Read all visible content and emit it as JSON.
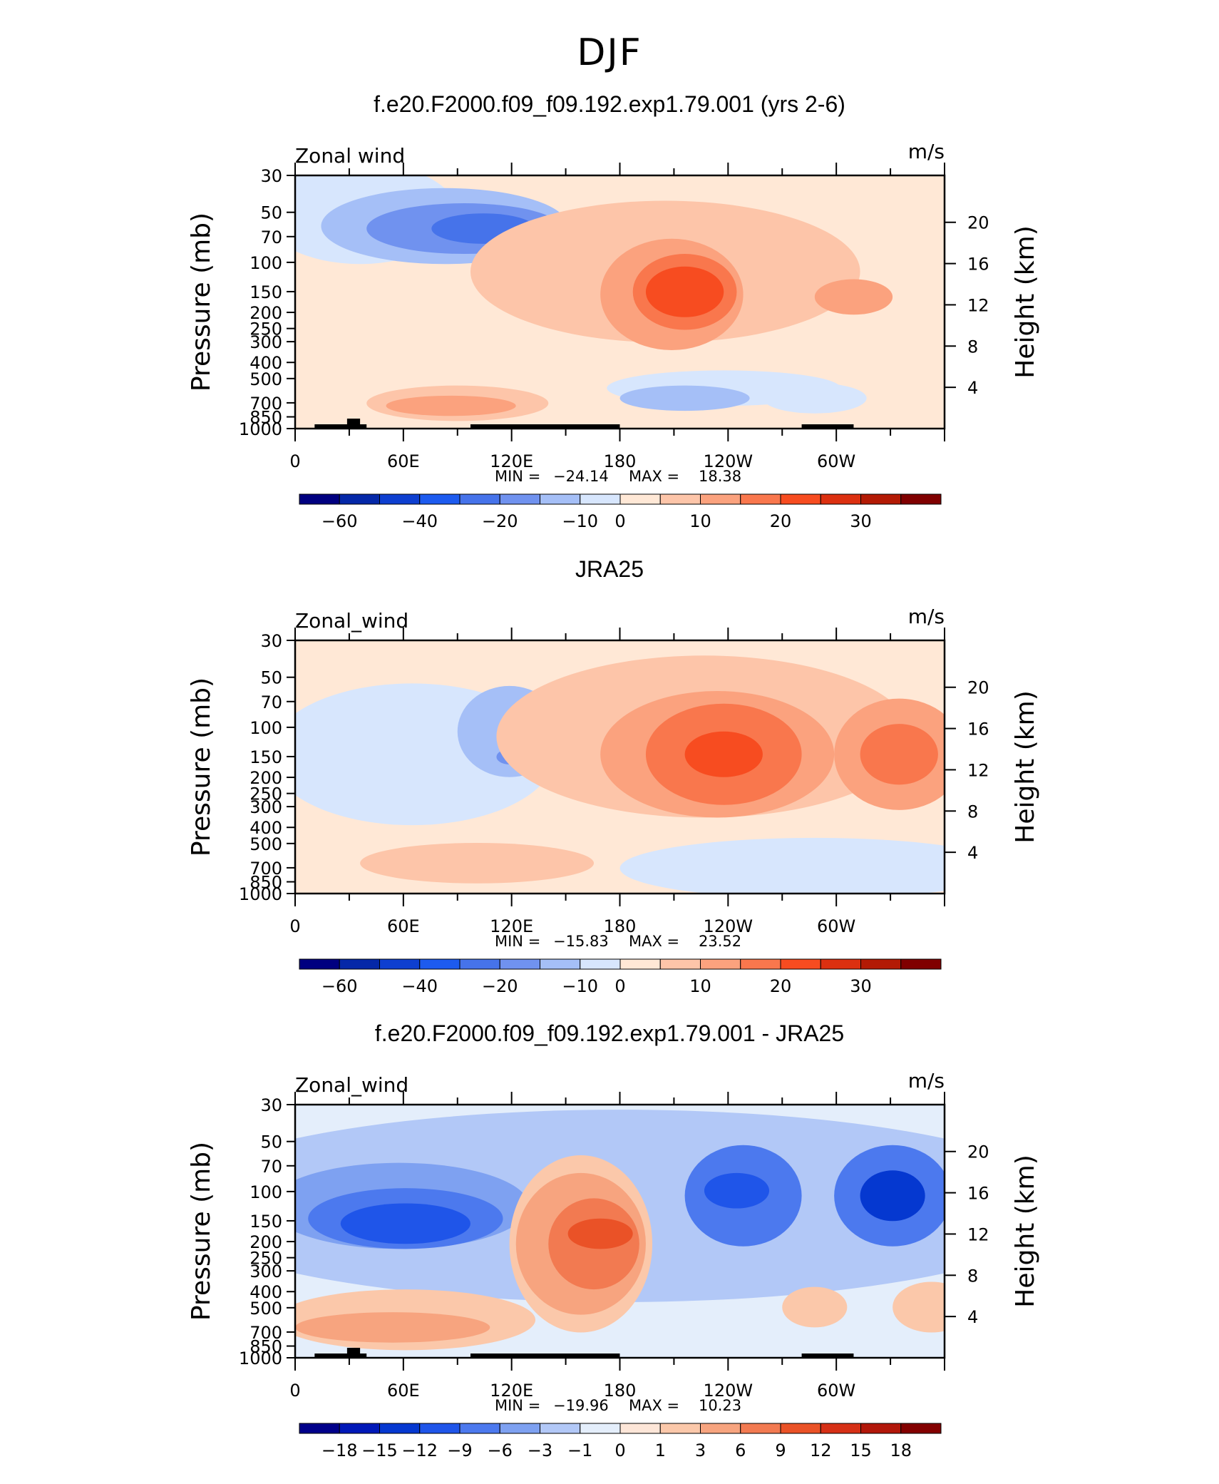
{
  "figure_title": "DJF",
  "chart_data": [
    {
      "type": "heatmap",
      "title": "f.e20.F2000.f09_f09.192.exp1.79.001 (yrs 2-6)",
      "left_label": "Zonal wind",
      "units": "m/s",
      "ylabel": "Pressure (mb)",
      "ylabel_right": "Height (km)",
      "xticks": [
        "0",
        "60E",
        "120E",
        "180",
        "120W",
        "60W"
      ],
      "yticks": [
        "30",
        "50",
        "70",
        "100",
        "150",
        "200",
        "250",
        "300",
        "400",
        "500",
        "700",
        "850",
        "1000"
      ],
      "yticks_right": [
        "20",
        "16",
        "12",
        "8",
        "4"
      ],
      "stats": {
        "min_label": "MIN =",
        "min": "−24.14",
        "max_label": "MAX =",
        "max": "18.38"
      },
      "colorbar_labels": [
        "−60",
        "−40",
        "−20",
        "−10",
        "0",
        "10",
        "20",
        "30"
      ],
      "features": [
        {
          "type": "blob",
          "lon": 0.1,
          "lev": 0.85,
          "rx": 0.15,
          "ry": 0.2,
          "level": -1
        },
        {
          "type": "blob",
          "lon": 0.23,
          "lev": 0.8,
          "rx": 0.19,
          "ry": 0.15,
          "level": -2
        },
        {
          "type": "blob",
          "lon": 0.26,
          "lev": 0.79,
          "rx": 0.15,
          "ry": 0.1,
          "level": -3
        },
        {
          "type": "blob",
          "lon": 0.29,
          "lev": 0.79,
          "rx": 0.08,
          "ry": 0.06,
          "level": -4
        },
        {
          "type": "blob",
          "lon": 0.65,
          "lev": 0.69,
          "rx": 0.04,
          "ry": 0.07,
          "level": -1
        },
        {
          "type": "blob",
          "lon": 0.66,
          "lev": 0.16,
          "rx": 0.18,
          "ry": 0.07,
          "level": -1
        },
        {
          "type": "blob",
          "lon": 0.6,
          "lev": 0.12,
          "rx": 0.1,
          "ry": 0.05,
          "level": -2
        },
        {
          "type": "blob",
          "lon": 0.8,
          "lev": 0.12,
          "rx": 0.08,
          "ry": 0.06,
          "level": -1
        },
        {
          "type": "blob",
          "lon": 0.25,
          "lev": 0.1,
          "rx": 0.14,
          "ry": 0.07,
          "level": 1
        },
        {
          "type": "blob",
          "lon": 0.24,
          "lev": 0.09,
          "rx": 0.1,
          "ry": 0.04,
          "level": 2
        },
        {
          "type": "blob",
          "lon": 0.57,
          "lev": 0.62,
          "rx": 0.3,
          "ry": 0.28,
          "level": 1
        },
        {
          "type": "blob",
          "lon": 0.58,
          "lev": 0.53,
          "rx": 0.11,
          "ry": 0.22,
          "level": 2
        },
        {
          "type": "blob",
          "lon": 0.6,
          "lev": 0.54,
          "rx": 0.08,
          "ry": 0.15,
          "level": 3
        },
        {
          "type": "blob",
          "lon": 0.6,
          "lev": 0.54,
          "rx": 0.06,
          "ry": 0.1,
          "level": 4
        },
        {
          "type": "blob",
          "lon": 0.86,
          "lev": 0.52,
          "rx": 0.06,
          "ry": 0.07,
          "level": 2
        }
      ]
    },
    {
      "type": "heatmap",
      "title": "JRA25",
      "left_label": "Zonal_wind",
      "units": "m/s",
      "ylabel": "Pressure (mb)",
      "ylabel_right": "Height (km)",
      "xticks": [
        "0",
        "60E",
        "120E",
        "180",
        "120W",
        "60W"
      ],
      "yticks": [
        "30",
        "50",
        "70",
        "100",
        "150",
        "200",
        "250",
        "300",
        "400",
        "500",
        "700",
        "850",
        "1000"
      ],
      "yticks_right": [
        "20",
        "16",
        "12",
        "8",
        "4"
      ],
      "stats": {
        "min_label": "MIN =",
        "min": "−15.83",
        "max_label": "MAX =",
        "max": "23.52"
      },
      "colorbar_labels": [
        "−60",
        "−40",
        "−20",
        "−10",
        "0",
        "10",
        "20",
        "30"
      ],
      "features": [
        {
          "type": "blob",
          "lon": 0.18,
          "lev": 0.55,
          "rx": 0.22,
          "ry": 0.28,
          "level": -1
        },
        {
          "type": "blob",
          "lon": 0.33,
          "lev": 0.64,
          "rx": 0.08,
          "ry": 0.18,
          "level": -2
        },
        {
          "type": "blob",
          "lon": 0.33,
          "lev": 0.54,
          "rx": 0.02,
          "ry": 0.03,
          "level": -3
        },
        {
          "type": "blob",
          "lon": 0.8,
          "lev": 0.1,
          "rx": 0.3,
          "ry": 0.12,
          "level": -1
        },
        {
          "type": "blob",
          "lon": 0.28,
          "lev": 0.12,
          "rx": 0.18,
          "ry": 0.08,
          "level": 1
        },
        {
          "type": "blob",
          "lon": 0.63,
          "lev": 0.62,
          "rx": 0.32,
          "ry": 0.32,
          "level": 1
        },
        {
          "type": "blob",
          "lon": 0.65,
          "lev": 0.55,
          "rx": 0.18,
          "ry": 0.25,
          "level": 2
        },
        {
          "type": "blob",
          "lon": 0.66,
          "lev": 0.55,
          "rx": 0.12,
          "ry": 0.2,
          "level": 3
        },
        {
          "type": "blob",
          "lon": 0.66,
          "lev": 0.55,
          "rx": 0.06,
          "ry": 0.09,
          "level": 4
        },
        {
          "type": "blob",
          "lon": 0.93,
          "lev": 0.55,
          "rx": 0.1,
          "ry": 0.22,
          "level": 2
        },
        {
          "type": "blob",
          "lon": 0.93,
          "lev": 0.55,
          "rx": 0.06,
          "ry": 0.12,
          "level": 3
        }
      ]
    },
    {
      "type": "heatmap",
      "title": "f.e20.F2000.f09_f09.192.exp1.79.001 - JRA25",
      "left_label": "Zonal_wind",
      "units": "m/s",
      "ylabel": "Pressure (mb)",
      "ylabel_right": "Height (km)",
      "xticks": [
        "0",
        "60E",
        "120E",
        "180",
        "120W",
        "60W"
      ],
      "yticks": [
        "30",
        "50",
        "70",
        "100",
        "150",
        "200",
        "250",
        "300",
        "400",
        "500",
        "700",
        "850",
        "1000"
      ],
      "yticks_right": [
        "20",
        "16",
        "12",
        "8",
        "4"
      ],
      "stats": {
        "min_label": "MIN =",
        "min": "−19.96",
        "max_label": "MAX =",
        "max": "10.23"
      },
      "colorbar_labels": [
        "−18",
        "−15",
        "−12",
        "−9",
        "−6",
        "−3",
        "−1",
        "0",
        "1",
        "3",
        "6",
        "9",
        "12",
        "15",
        "18"
      ],
      "features": [
        {
          "type": "blob",
          "lon": 0.5,
          "lev": 0.6,
          "rx": 0.7,
          "ry": 0.38,
          "level": -2
        },
        {
          "type": "blob",
          "lon": 0.16,
          "lev": 0.6,
          "rx": 0.2,
          "ry": 0.17,
          "level": -3
        },
        {
          "type": "blob",
          "lon": 0.17,
          "lev": 0.55,
          "rx": 0.15,
          "ry": 0.12,
          "level": -4
        },
        {
          "type": "blob",
          "lon": 0.17,
          "lev": 0.53,
          "rx": 0.1,
          "ry": 0.08,
          "level": -5
        },
        {
          "type": "blob",
          "lon": 0.69,
          "lev": 0.64,
          "rx": 0.09,
          "ry": 0.2,
          "level": -4
        },
        {
          "type": "blob",
          "lon": 0.68,
          "lev": 0.66,
          "rx": 0.05,
          "ry": 0.07,
          "level": -5
        },
        {
          "type": "blob",
          "lon": 0.92,
          "lev": 0.64,
          "rx": 0.09,
          "ry": 0.2,
          "level": -4
        },
        {
          "type": "blob",
          "lon": 0.92,
          "lev": 0.64,
          "rx": 0.05,
          "ry": 0.1,
          "level": -6
        },
        {
          "type": "blob",
          "lon": 0.44,
          "lev": 0.45,
          "rx": 0.11,
          "ry": 0.35,
          "level": 1
        },
        {
          "type": "blob",
          "lon": 0.44,
          "lev": 0.45,
          "rx": 0.1,
          "ry": 0.28,
          "level": 2
        },
        {
          "type": "blob",
          "lon": 0.46,
          "lev": 0.45,
          "rx": 0.07,
          "ry": 0.18,
          "level": 3
        },
        {
          "type": "blob",
          "lon": 0.47,
          "lev": 0.49,
          "rx": 0.05,
          "ry": 0.06,
          "level": 4
        },
        {
          "type": "blob",
          "lon": 0.17,
          "lev": 0.15,
          "rx": 0.2,
          "ry": 0.12,
          "level": 1
        },
        {
          "type": "blob",
          "lon": 0.15,
          "lev": 0.12,
          "rx": 0.15,
          "ry": 0.06,
          "level": 2
        },
        {
          "type": "blob",
          "lon": 0.8,
          "lev": 0.2,
          "rx": 0.05,
          "ry": 0.08,
          "level": 1
        },
        {
          "type": "blob",
          "lon": 0.98,
          "lev": 0.2,
          "rx": 0.06,
          "ry": 0.1,
          "level": 1
        }
      ]
    }
  ],
  "colors": {
    "scale_main": [
      "#000080",
      "#0528a8",
      "#0e3fd0",
      "#1d5bef",
      "#4673ea",
      "#7092ef",
      "#a5bff7",
      "#d7e6fd",
      "#ffe8d6",
      "#fdc5a9",
      "#fba27e",
      "#f9774d",
      "#f74c20",
      "#dc3010",
      "#b31a05",
      "#800000"
    ],
    "scale_diff": [
      "#00008a",
      "#0018b8",
      "#0538d0",
      "#1f55e9",
      "#4c79ee",
      "#7ea1f1",
      "#b2c8f7",
      "#e4eefb",
      "#fde6d8",
      "#fbc8aa",
      "#f7a47f",
      "#f27a51",
      "#ea5227",
      "#d63016",
      "#b2170a",
      "#830000"
    ]
  }
}
